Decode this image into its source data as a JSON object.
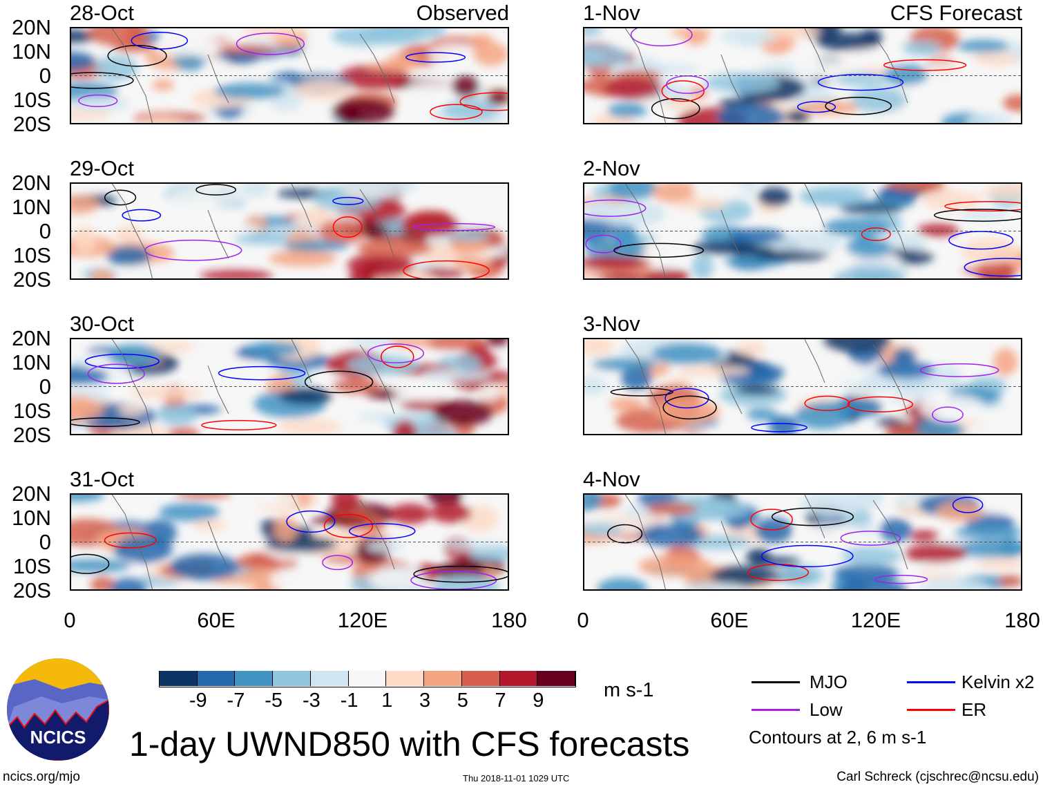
{
  "columns": [
    {
      "label": "Observed",
      "dates": [
        "28-Oct",
        "29-Oct",
        "30-Oct",
        "31-Oct"
      ]
    },
    {
      "label": "CFS Forecast",
      "dates": [
        "1-Nov",
        "2-Nov",
        "3-Nov",
        "4-Nov"
      ]
    }
  ],
  "lat_ticks": [
    "20N",
    "10N",
    "0",
    "10S",
    "20S"
  ],
  "lon_ticks": [
    "0",
    "60E",
    "120E",
    "180"
  ],
  "colorbar": {
    "labels": [
      "-9",
      "-7",
      "-5",
      "-3",
      "-1",
      "1",
      "3",
      "5",
      "7",
      "9"
    ],
    "colors": [
      "#0c3464",
      "#2469ad",
      "#4393c3",
      "#92c5de",
      "#d1e5f0",
      "#f7f7f7",
      "#fddbc7",
      "#f4a582",
      "#d6604d",
      "#b2182b",
      "#67001f"
    ],
    "units": "m s-1"
  },
  "legend": {
    "items": [
      {
        "label": "MJO",
        "color": "#000000"
      },
      {
        "label": "Kelvin x2",
        "color": "#0000ff"
      },
      {
        "label": "Low",
        "color": "#a020f0"
      },
      {
        "label": "ER",
        "color": "#ff0000"
      }
    ],
    "note": "Contours at 2, 6 m s-1"
  },
  "title": "1-day UWND850 with CFS forecasts",
  "logo_text": "NCICS",
  "footer": {
    "left": "ncics.org/mjo",
    "center": "Thu 2018-11-01 1029 UTC",
    "right": "Carl Schreck (cjschrec@ncsu.edu)"
  }
}
